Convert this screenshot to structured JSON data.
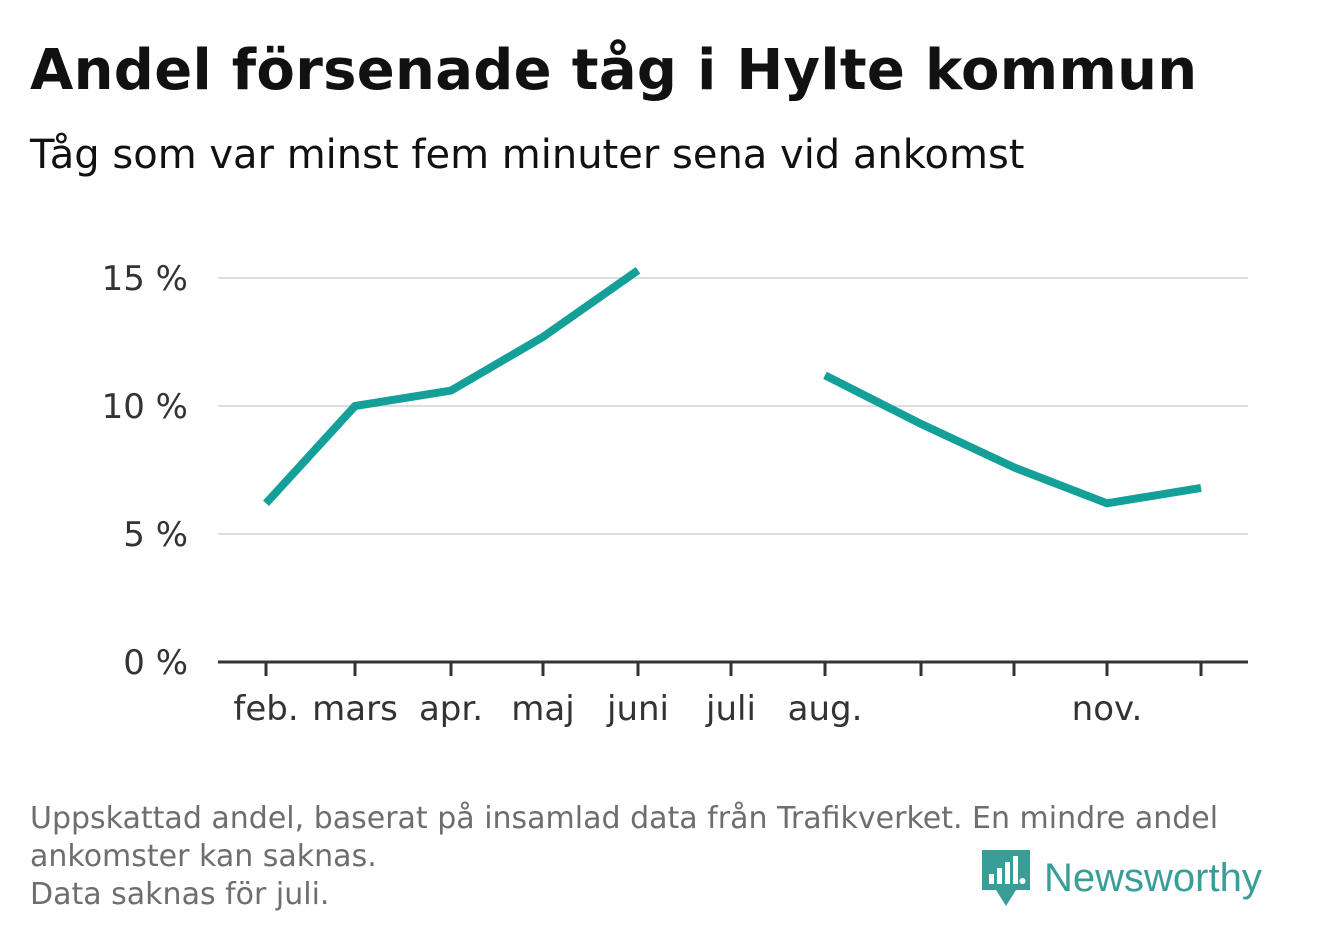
{
  "title": "Andel försenade tåg i Hylte kommun",
  "subtitle": "Tåg som var minst fem minuter sena vid ankomst",
  "chart_data": {
    "type": "line",
    "title": "Andel försenade tåg i Hylte kommun",
    "subtitle": "Tåg som var minst fem minuter sena vid ankomst",
    "xlabel": "",
    "ylabel": "",
    "x_categories": [
      "feb.",
      "mars",
      "apr.",
      "maj",
      "juni",
      "juli",
      "aug.",
      "",
      "",
      "nov.",
      ""
    ],
    "x_tick_labels_shown": [
      "feb.",
      "mars",
      "apr.",
      "maj",
      "juni",
      "juli",
      "aug.",
      "nov."
    ],
    "y_ticks": [
      0,
      5,
      10,
      15
    ],
    "y_tick_labels": [
      "0 %",
      "5 %",
      "10 %",
      "15 %"
    ],
    "ylim": [
      0,
      15
    ],
    "grid": true,
    "series": [
      {
        "color": "#14a098",
        "values": [
          6.2,
          10.0,
          10.6,
          12.7,
          15.3,
          null,
          11.2,
          9.3,
          7.6,
          6.2,
          6.8
        ]
      }
    ]
  },
  "footnote": {
    "line1": "Uppskattad andel, baserat på insamlad data från Trafikverket. En mindre andel",
    "line2": "ankomster kan saknas.",
    "line3": "Data saknas för juli."
  },
  "logo": {
    "name": "Newsworthy",
    "color": "#3a9e98"
  }
}
